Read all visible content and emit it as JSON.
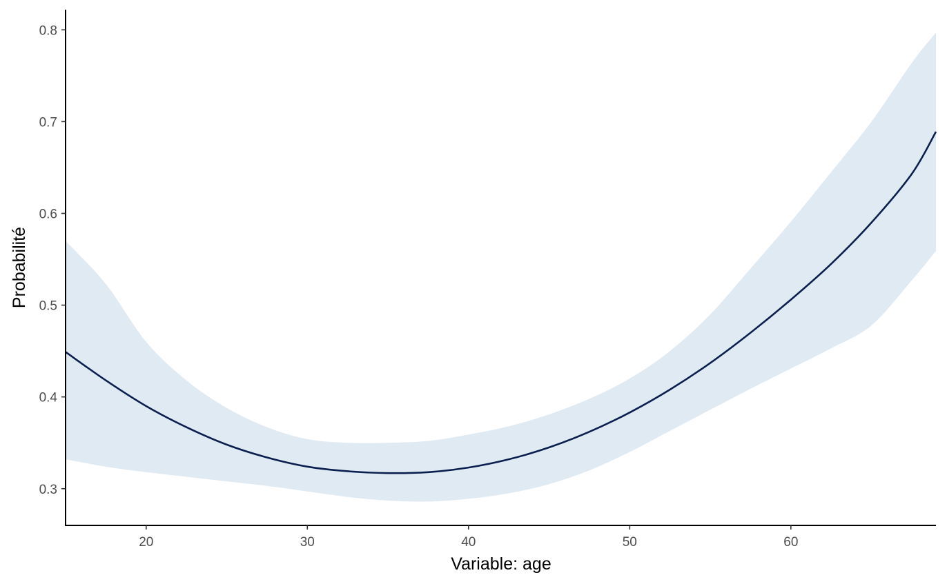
{
  "chart_data": {
    "type": "line",
    "title": "",
    "xlabel": "Variable: age",
    "ylabel": "Probabilité",
    "xlim": [
      15,
      69
    ],
    "ylim": [
      0.26,
      0.822
    ],
    "x_ticks": [
      20,
      30,
      40,
      50,
      60
    ],
    "x_tick_labels": [
      "20",
      "30",
      "40",
      "50",
      "60"
    ],
    "y_ticks": [
      0.3,
      0.4,
      0.5,
      0.6,
      0.7,
      0.8
    ],
    "y_tick_labels": [
      "0.3",
      "0.4",
      "0.5",
      "0.6",
      "0.7",
      "0.8"
    ],
    "grid": false,
    "legend": "none",
    "x": [
      15,
      17.5,
      20,
      22.5,
      25,
      27.5,
      30,
      32.5,
      35,
      37.5,
      40,
      42.5,
      45,
      47.5,
      50,
      52.5,
      55,
      57.5,
      60,
      62.5,
      65,
      67.5,
      69
    ],
    "series": [
      {
        "color": "#0b1f4f",
        "values": [
          0.449,
          0.418,
          0.39,
          0.367,
          0.348,
          0.334,
          0.324,
          0.319,
          0.317,
          0.318,
          0.323,
          0.332,
          0.345,
          0.362,
          0.383,
          0.408,
          0.437,
          0.47,
          0.506,
          0.545,
          0.59,
          0.643,
          0.689
        ],
        "lower": [
          0.332,
          0.324,
          0.318,
          0.313,
          0.308,
          0.303,
          0.297,
          0.291,
          0.287,
          0.286,
          0.289,
          0.295,
          0.305,
          0.32,
          0.34,
          0.363,
          0.386,
          0.409,
          0.431,
          0.453,
          0.478,
          0.527,
          0.559
        ],
        "upper": [
          0.57,
          0.523,
          0.46,
          0.418,
          0.388,
          0.367,
          0.354,
          0.35,
          0.35,
          0.352,
          0.359,
          0.368,
          0.381,
          0.398,
          0.42,
          0.45,
          0.49,
          0.54,
          0.591,
          0.645,
          0.7,
          0.764,
          0.797
        ],
        "band_color": "#e0eaf3"
      }
    ]
  }
}
